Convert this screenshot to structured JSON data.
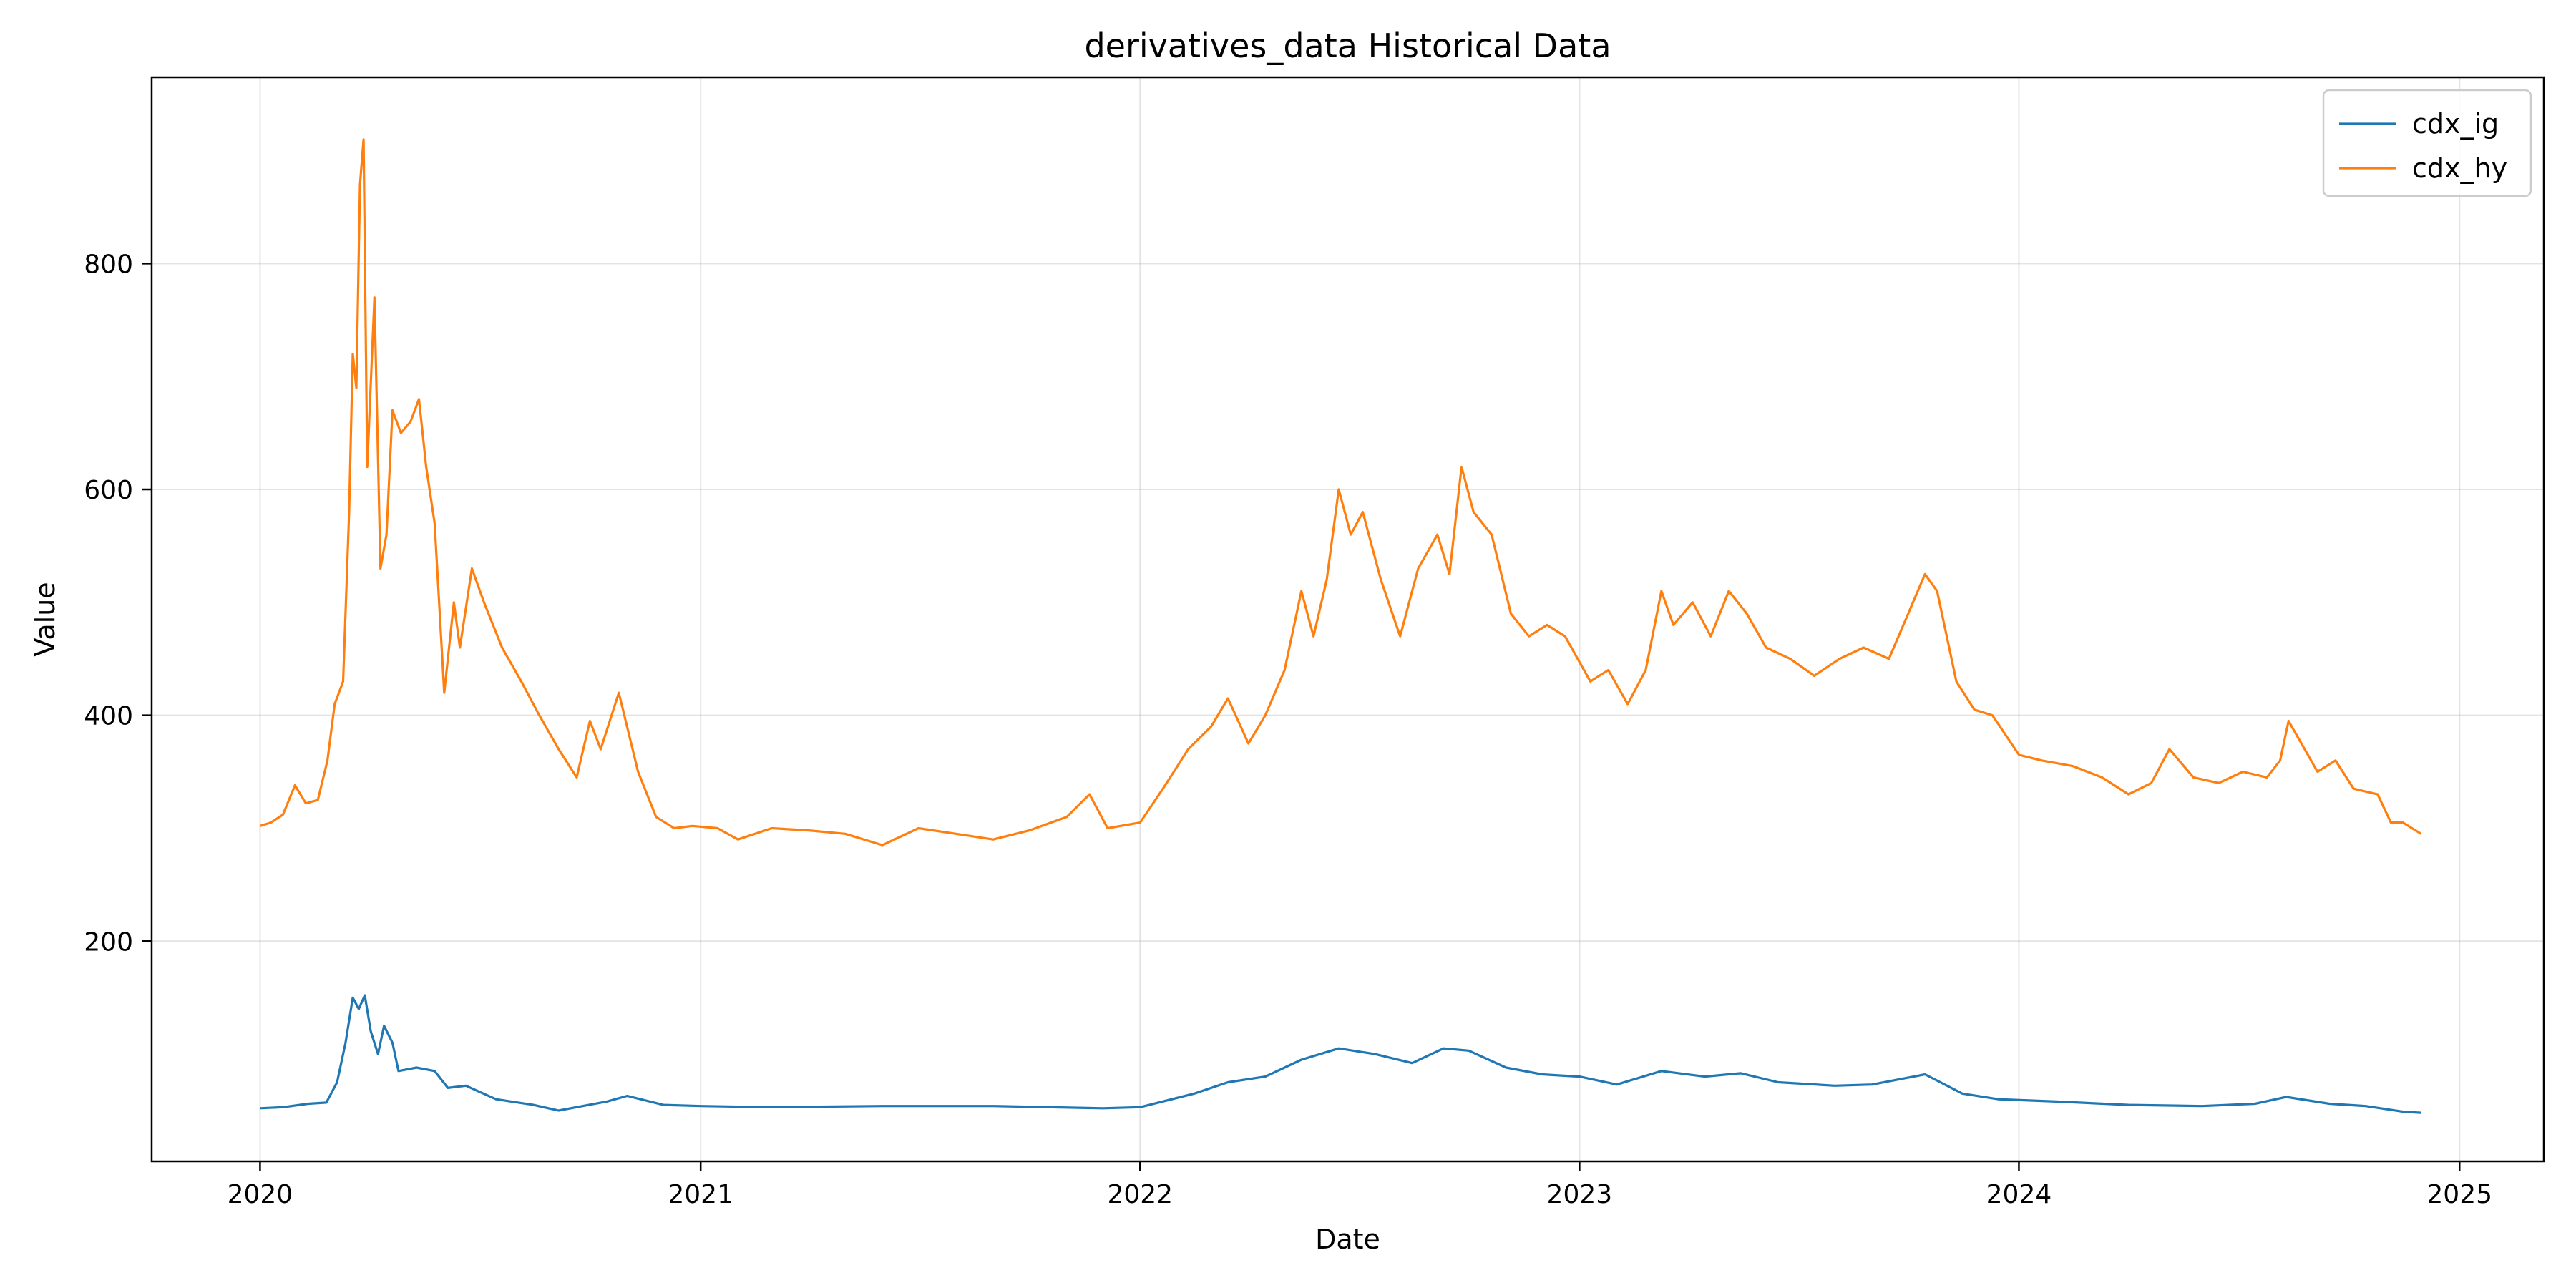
{
  "chart_data": {
    "type": "line",
    "title": "derivatives_data Historical Data",
    "xlabel": "Date",
    "ylabel": "Value",
    "x_axis_type": "date",
    "xlim": [
      "2019-10-03",
      "2025-03-12"
    ],
    "ylim": [
      5,
      965
    ],
    "x_ticks": [
      "2020",
      "2021",
      "2022",
      "2023",
      "2024",
      "2025"
    ],
    "y_ticks": [
      200,
      400,
      600,
      800
    ],
    "grid": true,
    "legend_position": "top-right",
    "series": [
      {
        "name": "cdx_ig",
        "color": "#1f77b4",
        "points": [
          [
            "2020-01-01",
            52
          ],
          [
            "2020-01-20",
            53
          ],
          [
            "2020-02-10",
            56
          ],
          [
            "2020-02-25",
            57
          ],
          [
            "2020-03-05",
            75
          ],
          [
            "2020-03-12",
            110
          ],
          [
            "2020-03-18",
            150
          ],
          [
            "2020-03-23",
            140
          ],
          [
            "2020-03-28",
            152
          ],
          [
            "2020-04-02",
            120
          ],
          [
            "2020-04-08",
            100
          ],
          [
            "2020-04-13",
            125
          ],
          [
            "2020-04-20",
            110
          ],
          [
            "2020-04-25",
            85
          ],
          [
            "2020-05-10",
            88
          ],
          [
            "2020-05-25",
            85
          ],
          [
            "2020-06-05",
            70
          ],
          [
            "2020-06-20",
            72
          ],
          [
            "2020-07-15",
            60
          ],
          [
            "2020-08-15",
            55
          ],
          [
            "2020-09-05",
            50
          ],
          [
            "2020-09-25",
            54
          ],
          [
            "2020-10-15",
            58
          ],
          [
            "2020-11-01",
            63
          ],
          [
            "2020-12-01",
            55
          ],
          [
            "2021-01-01",
            54
          ],
          [
            "2021-03-01",
            53
          ],
          [
            "2021-06-01",
            54
          ],
          [
            "2021-09-01",
            54
          ],
          [
            "2021-12-01",
            52
          ],
          [
            "2022-01-01",
            53
          ],
          [
            "2022-02-15",
            65
          ],
          [
            "2022-03-15",
            75
          ],
          [
            "2022-04-15",
            80
          ],
          [
            "2022-05-15",
            95
          ],
          [
            "2022-06-15",
            105
          ],
          [
            "2022-07-15",
            100
          ],
          [
            "2022-08-15",
            92
          ],
          [
            "2022-09-10",
            105
          ],
          [
            "2022-10-01",
            103
          ],
          [
            "2022-11-01",
            88
          ],
          [
            "2022-12-01",
            82
          ],
          [
            "2023-01-01",
            80
          ],
          [
            "2023-02-01",
            73
          ],
          [
            "2023-03-10",
            85
          ],
          [
            "2023-04-15",
            80
          ],
          [
            "2023-05-15",
            83
          ],
          [
            "2023-06-15",
            75
          ],
          [
            "2023-08-01",
            72
          ],
          [
            "2023-09-01",
            73
          ],
          [
            "2023-10-15",
            82
          ],
          [
            "2023-11-15",
            65
          ],
          [
            "2023-12-15",
            60
          ],
          [
            "2024-02-01",
            58
          ],
          [
            "2024-04-01",
            55
          ],
          [
            "2024-06-01",
            54
          ],
          [
            "2024-07-15",
            56
          ],
          [
            "2024-08-10",
            62
          ],
          [
            "2024-09-15",
            56
          ],
          [
            "2024-10-15",
            54
          ],
          [
            "2024-11-15",
            49
          ],
          [
            "2024-11-30",
            48
          ]
        ]
      },
      {
        "name": "cdx_hy",
        "color": "#ff7f0e",
        "points": [
          [
            "2020-01-01",
            302
          ],
          [
            "2020-01-10",
            305
          ],
          [
            "2020-01-20",
            312
          ],
          [
            "2020-01-30",
            338
          ],
          [
            "2020-02-08",
            322
          ],
          [
            "2020-02-18",
            325
          ],
          [
            "2020-02-26",
            360
          ],
          [
            "2020-03-03",
            410
          ],
          [
            "2020-03-10",
            430
          ],
          [
            "2020-03-15",
            580
          ],
          [
            "2020-03-18",
            720
          ],
          [
            "2020-03-21",
            690
          ],
          [
            "2020-03-24",
            870
          ],
          [
            "2020-03-27",
            910
          ],
          [
            "2020-03-30",
            620
          ],
          [
            "2020-04-05",
            770
          ],
          [
            "2020-04-10",
            530
          ],
          [
            "2020-04-15",
            560
          ],
          [
            "2020-04-20",
            670
          ],
          [
            "2020-04-27",
            650
          ],
          [
            "2020-05-05",
            660
          ],
          [
            "2020-05-12",
            680
          ],
          [
            "2020-05-18",
            620
          ],
          [
            "2020-05-25",
            570
          ],
          [
            "2020-06-02",
            420
          ],
          [
            "2020-06-10",
            500
          ],
          [
            "2020-06-15",
            460
          ],
          [
            "2020-06-25",
            530
          ],
          [
            "2020-07-05",
            500
          ],
          [
            "2020-07-20",
            460
          ],
          [
            "2020-08-05",
            430
          ],
          [
            "2020-08-20",
            400
          ],
          [
            "2020-09-05",
            370
          ],
          [
            "2020-09-20",
            345
          ],
          [
            "2020-10-01",
            395
          ],
          [
            "2020-10-10",
            370
          ],
          [
            "2020-10-25",
            420
          ],
          [
            "2020-11-10",
            350
          ],
          [
            "2020-11-25",
            310
          ],
          [
            "2020-12-10",
            300
          ],
          [
            "2020-12-25",
            302
          ],
          [
            "2021-01-15",
            300
          ],
          [
            "2021-02-01",
            290
          ],
          [
            "2021-03-01",
            300
          ],
          [
            "2021-04-01",
            298
          ],
          [
            "2021-05-01",
            295
          ],
          [
            "2021-06-01",
            285
          ],
          [
            "2021-07-01",
            300
          ],
          [
            "2021-08-01",
            295
          ],
          [
            "2021-09-01",
            290
          ],
          [
            "2021-10-01",
            298
          ],
          [
            "2021-11-01",
            310
          ],
          [
            "2021-11-20",
            330
          ],
          [
            "2021-12-05",
            300
          ],
          [
            "2022-01-01",
            305
          ],
          [
            "2022-01-20",
            335
          ],
          [
            "2022-02-10",
            370
          ],
          [
            "2022-03-01",
            390
          ],
          [
            "2022-03-15",
            415
          ],
          [
            "2022-04-01",
            375
          ],
          [
            "2022-04-15",
            400
          ],
          [
            "2022-05-01",
            440
          ],
          [
            "2022-05-15",
            510
          ],
          [
            "2022-05-25",
            470
          ],
          [
            "2022-06-05",
            520
          ],
          [
            "2022-06-15",
            600
          ],
          [
            "2022-06-25",
            560
          ],
          [
            "2022-07-05",
            580
          ],
          [
            "2022-07-20",
            520
          ],
          [
            "2022-08-05",
            470
          ],
          [
            "2022-08-20",
            530
          ],
          [
            "2022-09-05",
            560
          ],
          [
            "2022-09-15",
            525
          ],
          [
            "2022-09-25",
            620
          ],
          [
            "2022-10-05",
            580
          ],
          [
            "2022-10-20",
            560
          ],
          [
            "2022-11-05",
            490
          ],
          [
            "2022-11-20",
            470
          ],
          [
            "2022-12-05",
            480
          ],
          [
            "2022-12-20",
            470
          ],
          [
            "2023-01-10",
            430
          ],
          [
            "2023-01-25",
            440
          ],
          [
            "2023-02-10",
            410
          ],
          [
            "2023-02-25",
            440
          ],
          [
            "2023-03-10",
            510
          ],
          [
            "2023-03-20",
            480
          ],
          [
            "2023-04-05",
            500
          ],
          [
            "2023-04-20",
            470
          ],
          [
            "2023-05-05",
            510
          ],
          [
            "2023-05-20",
            490
          ],
          [
            "2023-06-05",
            460
          ],
          [
            "2023-06-25",
            450
          ],
          [
            "2023-07-15",
            435
          ],
          [
            "2023-08-05",
            450
          ],
          [
            "2023-08-25",
            460
          ],
          [
            "2023-09-15",
            450
          ],
          [
            "2023-10-01",
            490
          ],
          [
            "2023-10-15",
            525
          ],
          [
            "2023-10-25",
            510
          ],
          [
            "2023-11-10",
            430
          ],
          [
            "2023-11-25",
            405
          ],
          [
            "2023-12-10",
            400
          ],
          [
            "2024-01-01",
            365
          ],
          [
            "2024-01-20",
            360
          ],
          [
            "2024-02-15",
            355
          ],
          [
            "2024-03-10",
            345
          ],
          [
            "2024-04-01",
            330
          ],
          [
            "2024-04-20",
            340
          ],
          [
            "2024-05-05",
            370
          ],
          [
            "2024-05-25",
            345
          ],
          [
            "2024-06-15",
            340
          ],
          [
            "2024-07-05",
            350
          ],
          [
            "2024-07-25",
            345
          ],
          [
            "2024-08-05",
            360
          ],
          [
            "2024-08-12",
            395
          ],
          [
            "2024-08-20",
            380
          ],
          [
            "2024-09-05",
            350
          ],
          [
            "2024-09-20",
            360
          ],
          [
            "2024-10-05",
            335
          ],
          [
            "2024-10-25",
            330
          ],
          [
            "2024-11-05",
            305
          ],
          [
            "2024-11-15",
            305
          ],
          [
            "2024-11-30",
            295
          ]
        ]
      }
    ]
  }
}
